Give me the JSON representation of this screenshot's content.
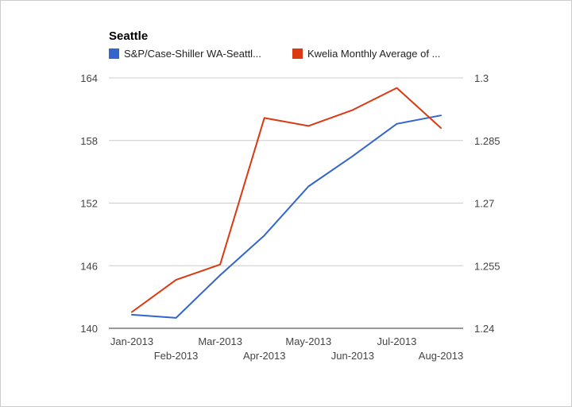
{
  "chart_data": {
    "type": "line",
    "title": "Seattle",
    "categories": [
      "Jan-2013",
      "Feb-2013",
      "Mar-2013",
      "Apr-2013",
      "May-2013",
      "Jun-2013",
      "Jul-2013",
      "Aug-2013"
    ],
    "series": [
      {
        "name": "S&P/Case-Shiller WA-Seattl...",
        "axis": "left",
        "color": "#3366cc",
        "values": [
          141.3,
          141.0,
          145.1,
          148.9,
          153.6,
          156.5,
          159.6,
          160.4
        ]
      },
      {
        "name": "Kwelia Monthly Average of ...",
        "axis": "right",
        "color": "#dc3912",
        "values": [
          1.2439,
          1.2516,
          1.2553,
          1.2904,
          1.2885,
          1.2923,
          1.2976,
          1.288
        ]
      }
    ],
    "left_axis": {
      "ticks": [
        "140",
        "146",
        "152",
        "158",
        "164"
      ],
      "ylim": [
        140,
        164
      ]
    },
    "right_axis": {
      "ticks": [
        "1.24",
        "1.255",
        "1.27",
        "1.285",
        "1.3"
      ],
      "ylim": [
        1.24,
        1.3
      ]
    },
    "grid": true,
    "legend_position": "top"
  }
}
